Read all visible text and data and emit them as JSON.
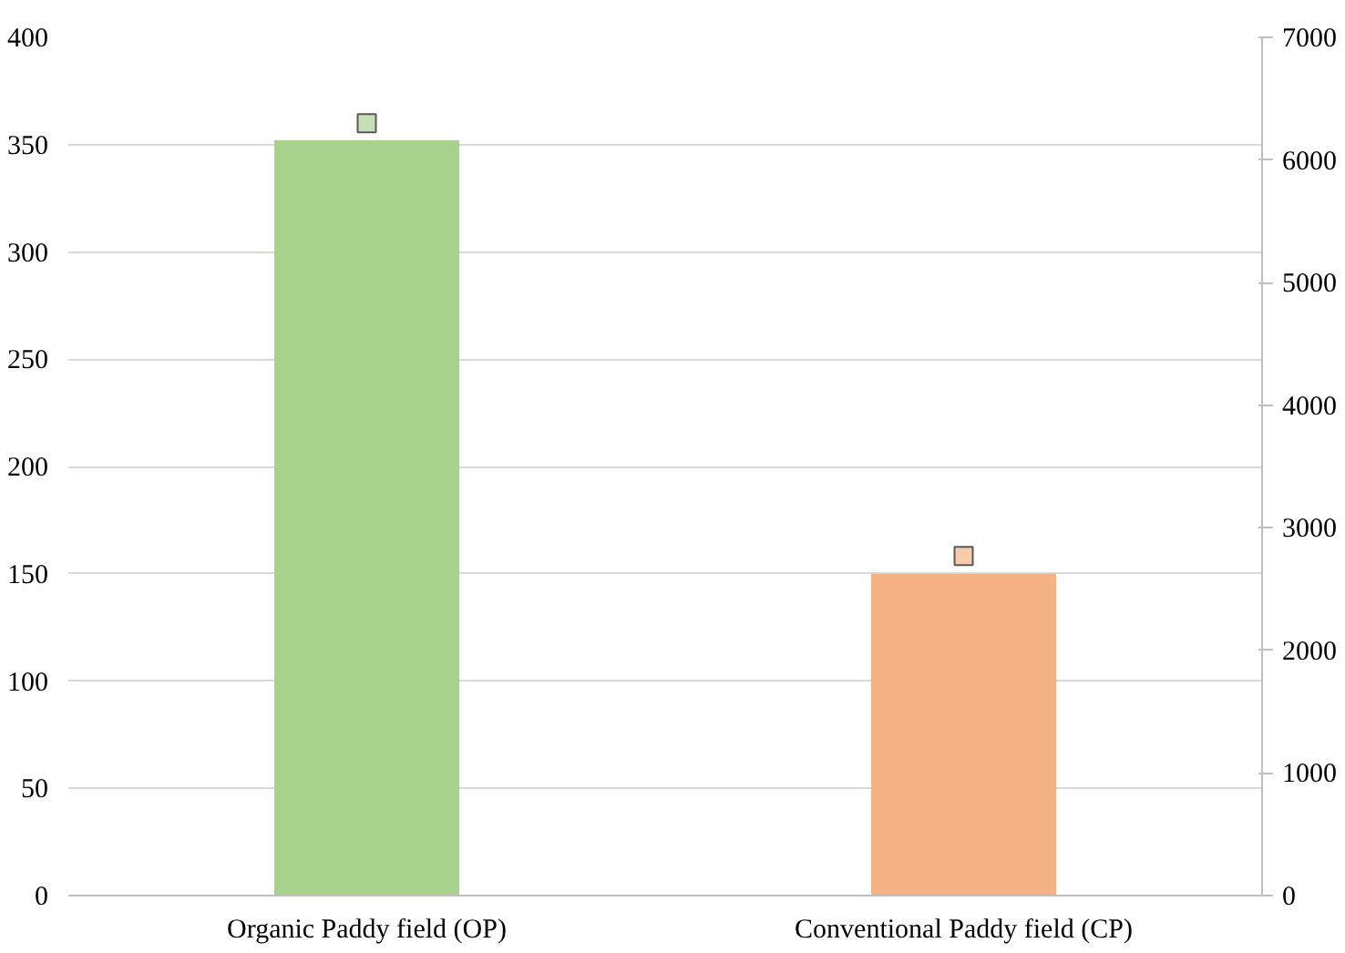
{
  "chart_data": {
    "type": "bar",
    "categories": [
      "Organic Paddy field (OP)",
      "Conventional Paddy field (CP)"
    ],
    "series": [
      {
        "colors": [
          "#a9d18e",
          "#f4b183"
        ],
        "values": [
          352,
          150
        ]
      },
      {
        "type": "scatter",
        "axis": "y2",
        "x": [
          "Organic Paddy field (OP)",
          "Conventional Paddy field (CP)"
        ],
        "colors": [
          "#c5e0b4",
          "#f8cbad"
        ],
        "values": [
          6300,
          2770
        ]
      }
    ],
    "ylim": [
      0,
      400
    ],
    "yticks": [
      0,
      50,
      100,
      150,
      200,
      250,
      300,
      350,
      400
    ],
    "y2lim": [
      0,
      7000
    ],
    "y2ticks": [
      0,
      1000,
      2000,
      3000,
      4000,
      5000,
      6000,
      7000
    ],
    "grid": "y",
    "marker": "square"
  }
}
